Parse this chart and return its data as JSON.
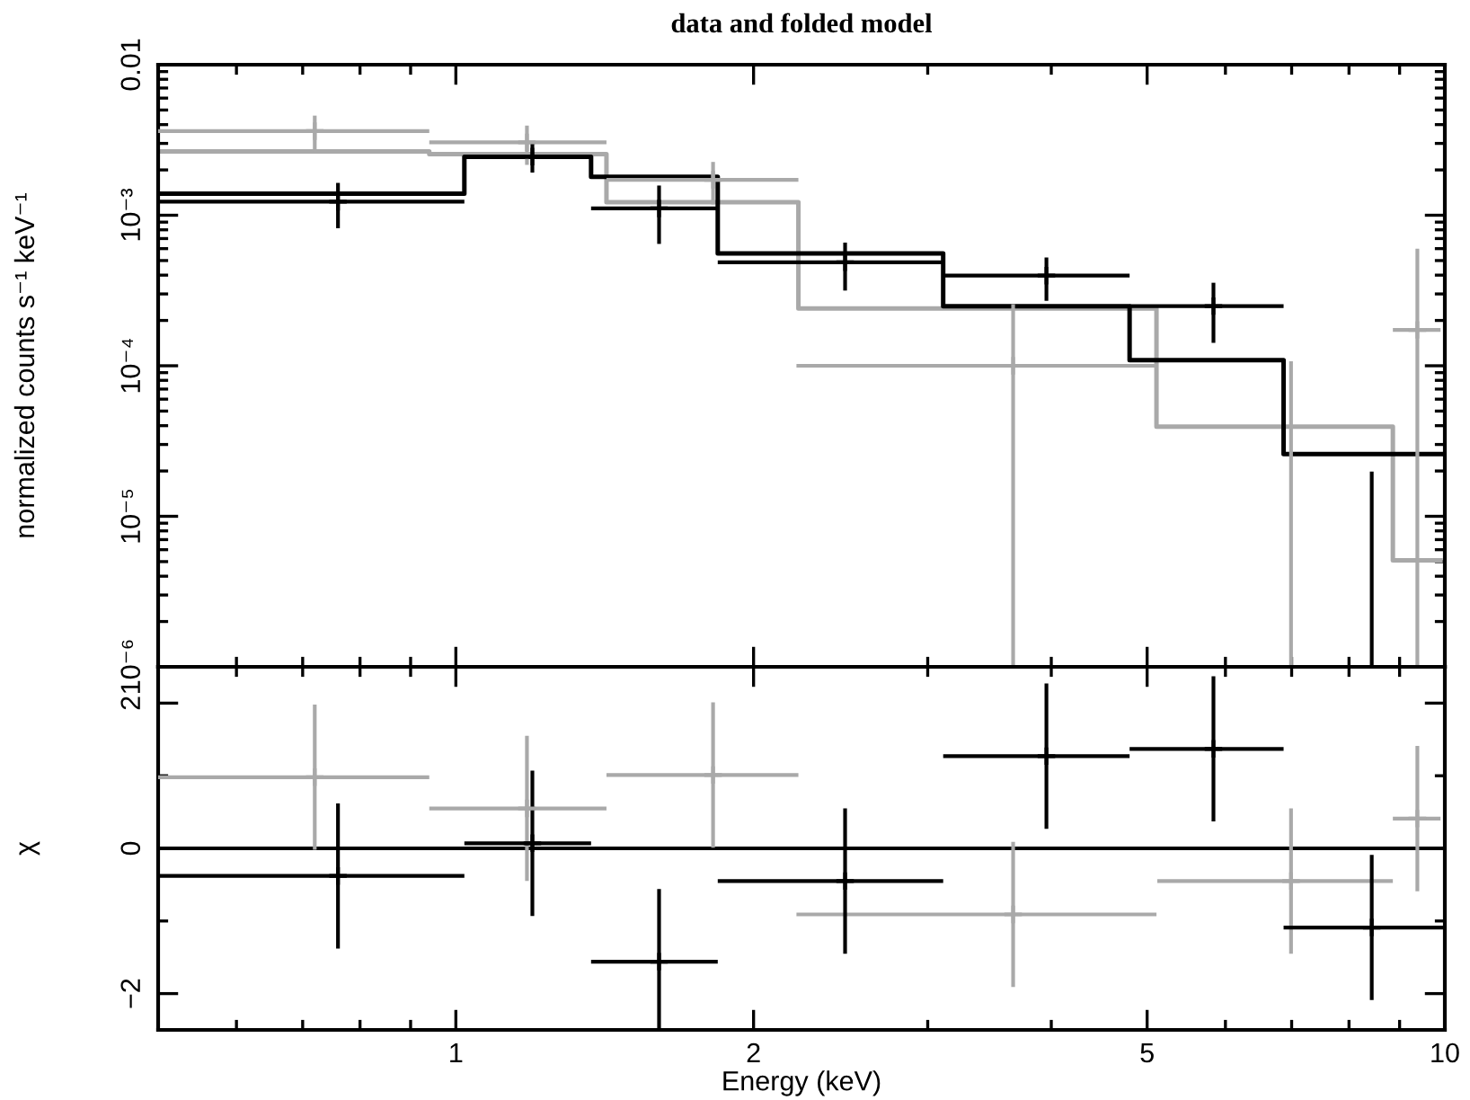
{
  "chart_data": [
    {
      "type": "step",
      "title": "data and folded model",
      "ylabel": "normalized counts s⁻¹ keV⁻¹",
      "log": "xy",
      "xlim": [
        0.5,
        10
      ],
      "xticks": [
        {
          "value": 0.6,
          "label": null
        },
        {
          "value": 0.7,
          "label": null
        },
        {
          "value": 0.8,
          "label": null
        },
        {
          "value": 0.9,
          "label": null
        },
        1,
        2,
        {
          "value": 3,
          "label": null
        },
        {
          "value": 4,
          "label": null
        },
        5,
        {
          "value": 6,
          "label": null
        },
        {
          "value": 7,
          "label": null
        },
        {
          "value": 8,
          "label": null
        },
        {
          "value": 9,
          "label": null
        },
        10
      ],
      "ylim": [
        1e-06,
        0.01
      ],
      "yticks": [
        {
          "value": 1e-06,
          "label": "10⁻⁶"
        },
        {
          "value": 2e-06,
          "label": null
        },
        {
          "value": 3e-06,
          "label": null
        },
        {
          "value": 4e-06,
          "label": null
        },
        {
          "value": 5e-06,
          "label": null
        },
        {
          "value": 6e-06,
          "label": null
        },
        {
          "value": 7e-06,
          "label": null
        },
        {
          "value": 8e-06,
          "label": null
        },
        {
          "value": 9e-06,
          "label": null
        },
        {
          "value": 1e-05,
          "label": "10⁻⁵"
        },
        {
          "value": 2e-05,
          "label": null
        },
        {
          "value": 3e-05,
          "label": null
        },
        {
          "value": 4e-05,
          "label": null
        },
        {
          "value": 5e-05,
          "label": null
        },
        {
          "value": 6e-05,
          "label": null
        },
        {
          "value": 7e-05,
          "label": null
        },
        {
          "value": 8e-05,
          "label": null
        },
        {
          "value": 9e-05,
          "label": null
        },
        {
          "value": 0.0001,
          "label": "10⁻⁴"
        },
        {
          "value": 0.0002,
          "label": null
        },
        {
          "value": 0.0003,
          "label": null
        },
        {
          "value": 0.0004,
          "label": null
        },
        {
          "value": 0.0005,
          "label": null
        },
        {
          "value": 0.0006,
          "label": null
        },
        {
          "value": 0.0007,
          "label": null
        },
        {
          "value": 0.0008,
          "label": null
        },
        {
          "value": 0.0009,
          "label": null
        },
        {
          "value": 0.001,
          "label": "10⁻³"
        },
        {
          "value": 0.002,
          "label": null
        },
        {
          "value": 0.003,
          "label": null
        },
        {
          "value": 0.004,
          "label": null
        },
        {
          "value": 0.005,
          "label": null
        },
        {
          "value": 0.006,
          "label": null
        },
        {
          "value": 0.007,
          "label": null
        },
        {
          "value": 0.008,
          "label": null
        },
        {
          "value": 0.009,
          "label": null
        },
        0.01
      ],
      "tick_labels": "y",
      "series": [
        {
          "type": "scatter",
          "marker": "cross",
          "color": "#a9a9a9",
          "x": [
            0.72,
            1.18,
            1.82,
            3.66,
            9.38
          ],
          "values": [
            0.00362,
            0.00305,
            0.00172,
            0.0001,
            0.000173
          ],
          "errors": [
            0.00097,
            0.00089,
            0.00054,
            [
              1e-06,
              0.000256
            ],
            [
              1e-06,
              0.0006
            ]
          ],
          "xerrors": [
            0.22,
            0.24,
            0.4,
            1.45,
            0.52
          ]
        },
        {
          "type": "step",
          "color": "#a9a9a9",
          "x": [
            0.5,
            0.94,
            1.42,
            2.22,
            5.11,
            8.86,
            9.9
          ],
          "values": [
            0.00265,
            0.00255,
            0.00122,
            0.00024,
            3.94e-05,
            5.1e-06,
            5.1e-06
          ]
        },
        {
          "type": "scatter",
          "marker": "cross",
          "color": "#000000",
          "x": [
            0.76,
            1.195,
            1.605,
            2.475,
            3.955,
            5.835
          ],
          "values": [
            0.00123,
            0.00245,
            0.00111,
            0.000487,
            0.000397,
            0.000249
          ],
          "errors": [
            0.00041,
            0.00053,
            0.000465,
            0.000171,
            0.000127,
            0.000107
          ],
          "xerrors": [
            0.26,
            0.175,
            0.235,
            0.635,
            0.845,
            1.035
          ]
        },
        {
          "type": "step",
          "color": "#000000",
          "x": [
            0.5,
            1.02,
            1.37,
            1.84,
            3.11,
            4.8,
            6.87,
            10
          ],
          "values": [
            0.00139,
            0.00244,
            0.0018,
            0.000558,
            0.000249,
            0.000109,
            2.59e-05,
            2.59e-05
          ]
        },
        {
          "type": "line",
          "color": "#a9a9a9",
          "x": [
            6.99,
            6.99
          ],
          "values": [
            1e-06,
            0.000107
          ]
        },
        {
          "type": "line",
          "color": "#000000",
          "x": [
            8.435,
            8.435
          ],
          "values": [
            1e-06,
            1.98e-05
          ]
        }
      ]
    },
    {
      "type": "scatter",
      "xlabel": "Energy (keV)",
      "ylabel": "χ",
      "log": "x",
      "marker": "cross",
      "xlim": [
        0.5,
        10
      ],
      "xticks": [
        {
          "value": 0.6,
          "label": null
        },
        {
          "value": 0.7,
          "label": null
        },
        {
          "value": 0.8,
          "label": null
        },
        {
          "value": 0.9,
          "label": null
        },
        1,
        2,
        {
          "value": 3,
          "label": null
        },
        {
          "value": 4,
          "label": null
        },
        5,
        {
          "value": 6,
          "label": null
        },
        {
          "value": 7,
          "label": null
        },
        {
          "value": 8,
          "label": null
        },
        {
          "value": 9,
          "label": null
        },
        10
      ],
      "ylim": [
        -2.5,
        2.5
      ],
      "yticks": [
        {
          "value": -2,
          "label": "−2"
        },
        {
          "value": -1,
          "label": null
        },
        0,
        {
          "value": 1,
          "label": null
        },
        2
      ],
      "ref_lines": [
        {
          "axis": "y",
          "value": 0,
          "color": "#000000"
        }
      ],
      "series": [
        {
          "color": "#a9a9a9",
          "x": [
            0.72,
            1.18,
            1.82,
            3.66,
            6.99,
            9.38
          ],
          "values": [
            0.98,
            0.55,
            1.01,
            -0.91,
            -0.45,
            0.41
          ],
          "errors": [
            1,
            1,
            1,
            1,
            1,
            1
          ],
          "xerrors": [
            0.22,
            0.24,
            0.4,
            1.45,
            1.87,
            0.52
          ]
        },
        {
          "color": "#000000",
          "x": [
            0.76,
            1.195,
            1.605,
            2.475,
            3.955,
            5.835,
            8.435
          ],
          "values": [
            -0.38,
            0.07,
            -1.56,
            -0.45,
            1.27,
            1.37,
            -1.09
          ],
          "errors": [
            1,
            1,
            1,
            1,
            1,
            1,
            1
          ],
          "xerrors": [
            0.26,
            0.175,
            0.235,
            0.635,
            0.845,
            1.035,
            1.565
          ]
        }
      ]
    }
  ]
}
